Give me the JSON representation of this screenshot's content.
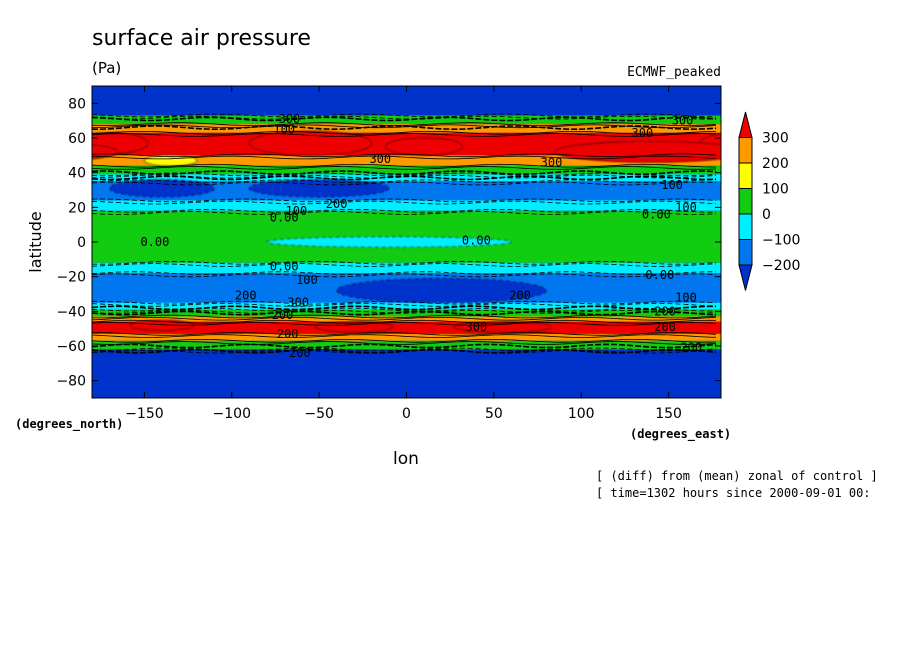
{
  "chart_data": {
    "type": "heatmap",
    "title": "surface air pressure",
    "units": "(Pa)",
    "model_label": "ECMWF_peaked",
    "xlabel": "lon",
    "ylabel": "latitude",
    "x_unit_label": "(degrees_east)",
    "y_unit_label": "(degrees_north)",
    "xlim": [
      -180,
      180
    ],
    "ylim": [
      -90,
      90
    ],
    "x_ticks": [
      -150,
      -100,
      -50,
      0,
      50,
      100,
      150
    ],
    "y_ticks": [
      80,
      60,
      40,
      20,
      0,
      -20,
      -40,
      -60,
      -80
    ],
    "colorbar": {
      "levels": [
        300,
        200,
        100,
        0,
        -100,
        -200
      ],
      "colors": [
        "#ee0000",
        "#ff9900",
        "#ffff00",
        "#11cc11",
        "#00eeff",
        "#0077ee",
        "#0033cc"
      ]
    },
    "bands": [
      {
        "lat_from": 90,
        "lat_to": 73,
        "value": -300
      },
      {
        "lat_from": 73,
        "lat_to": 68,
        "value": 0
      },
      {
        "lat_from": 68,
        "lat_to": 63,
        "value": 200
      },
      {
        "lat_from": 63,
        "lat_to": 50,
        "value": 300
      },
      {
        "lat_from": 50,
        "lat_to": 44,
        "value": 200
      },
      {
        "lat_from": 44,
        "lat_to": 39,
        "value": 0
      },
      {
        "lat_from": 39,
        "lat_to": 35,
        "value": -100
      },
      {
        "lat_from": 35,
        "lat_to": 24,
        "value": -200
      },
      {
        "lat_from": 24,
        "lat_to": 18,
        "value": -100
      },
      {
        "lat_from": 18,
        "lat_to": -12,
        "value": 0
      },
      {
        "lat_from": -12,
        "lat_to": -18,
        "value": -100
      },
      {
        "lat_from": -18,
        "lat_to": -35,
        "value": -200
      },
      {
        "lat_from": -35,
        "lat_to": -39,
        "value": -100
      },
      {
        "lat_from": -39,
        "lat_to": -43,
        "value": 0
      },
      {
        "lat_from": -43,
        "lat_to": -46,
        "value": 200
      },
      {
        "lat_from": -46,
        "lat_to": -53,
        "value": 300
      },
      {
        "lat_from": -53,
        "lat_to": -57,
        "value": 200
      },
      {
        "lat_from": -57,
        "lat_to": -62,
        "value": 0
      },
      {
        "lat_from": -62,
        "lat_to": -90,
        "value": -300
      }
    ],
    "blobs": [
      {
        "lon": -170,
        "lat": 57,
        "rlon": 22,
        "rlat": 6,
        "value": 300
      },
      {
        "lon": -55,
        "lat": 57,
        "rlon": 35,
        "rlat": 7,
        "value": 300
      },
      {
        "lon": 10,
        "lat": 55,
        "rlon": 22,
        "rlat": 5,
        "value": 300
      },
      {
        "lon": 140,
        "lat": 52,
        "rlon": 55,
        "rlat": 6,
        "value": 300
      },
      {
        "lon": -135,
        "lat": 47,
        "rlon": 15,
        "rlat": 3,
        "value": 100
      },
      {
        "lon": -140,
        "lat": 31,
        "rlon": 30,
        "rlat": 5,
        "value": -300
      },
      {
        "lon": -50,
        "lat": 31,
        "rlon": 40,
        "rlat": 5,
        "value": -300
      },
      {
        "lon": -10,
        "lat": 0,
        "rlon": 70,
        "rlat": 3,
        "value": -100
      },
      {
        "lon": 20,
        "lat": -28,
        "rlon": 60,
        "rlat": 7,
        "value": -300
      },
      {
        "lon": -140,
        "lat": -48,
        "rlon": 18,
        "rlat": 3,
        "value": 400
      },
      {
        "lon": -30,
        "lat": -49,
        "rlon": 22,
        "rlat": 3,
        "value": 400
      },
      {
        "lon": 55,
        "lat": -49,
        "rlon": 28,
        "rlat": 3,
        "value": 400
      }
    ],
    "contour_labels": [
      {
        "text": "300",
        "lon": -67,
        "lat": 71
      },
      {
        "text": "100",
        "lon": -70,
        "lat": 65
      },
      {
        "text": "300",
        "lon": -15,
        "lat": 48
      },
      {
        "text": "300",
        "lon": 83,
        "lat": 46
      },
      {
        "text": "300",
        "lon": 158,
        "lat": 70
      },
      {
        "text": "300",
        "lon": 135,
        "lat": 63
      },
      {
        "text": "100",
        "lon": 152,
        "lat": 33
      },
      {
        "text": "200",
        "lon": -40,
        "lat": 22
      },
      {
        "text": "100",
        "lon": -63,
        "lat": 18
      },
      {
        "text": "0.00",
        "lon": -70,
        "lat": 14
      },
      {
        "text": "100",
        "lon": 160,
        "lat": 20
      },
      {
        "text": "0.00",
        "lon": 143,
        "lat": 16
      },
      {
        "text": "0.00",
        "lon": -144,
        "lat": 0
      },
      {
        "text": "0.00",
        "lon": 40,
        "lat": 1
      },
      {
        "text": "0.00",
        "lon": -70,
        "lat": -14
      },
      {
        "text": "100",
        "lon": -57,
        "lat": -22
      },
      {
        "text": "0.00",
        "lon": 145,
        "lat": -19
      },
      {
        "text": "100",
        "lon": 160,
        "lat": -32
      },
      {
        "text": "200",
        "lon": -92,
        "lat": -31
      },
      {
        "text": "200",
        "lon": 65,
        "lat": -31
      },
      {
        "text": "300",
        "lon": -62,
        "lat": -35
      },
      {
        "text": "200",
        "lon": -71,
        "lat": -42
      },
      {
        "text": "300",
        "lon": 40,
        "lat": -49
      },
      {
        "text": "200",
        "lon": -68,
        "lat": -53
      },
      {
        "text": "200",
        "lon": 148,
        "lat": -49
      },
      {
        "text": "200",
        "lon": 163,
        "lat": -61
      },
      {
        "text": "200",
        "lon": -61,
        "lat": -64
      },
      {
        "text": "200",
        "lon": 148,
        "lat": -40
      }
    ]
  },
  "footer": {
    "line1": "[ (diff) from (mean) zonal of control ]",
    "line2": "[ time=1302 hours since 2000-09-01 00:"
  }
}
